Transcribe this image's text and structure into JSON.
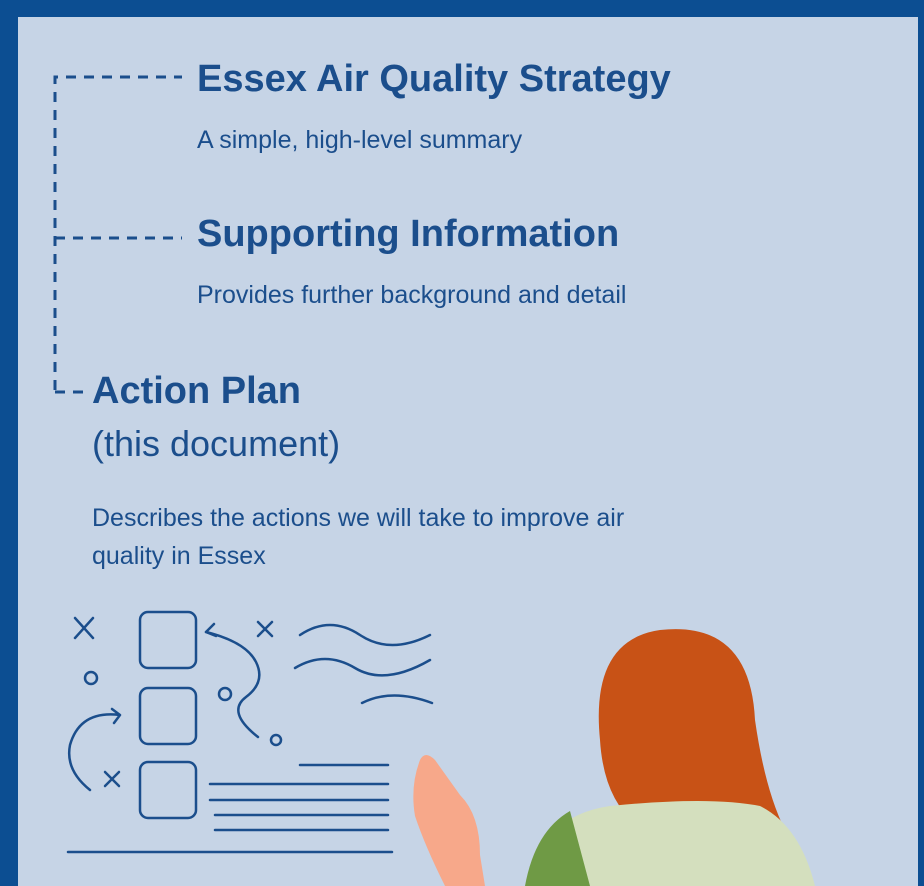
{
  "items": [
    {
      "title": "Essex Air Quality Strategy",
      "description": "A simple, high-level summary"
    },
    {
      "title": "Supporting Information",
      "description": "Provides further background and detail"
    },
    {
      "title": "Action Plan",
      "subtitle": "(this document)",
      "description": "Describes the actions we will take to improve air quality in Essex"
    }
  ]
}
